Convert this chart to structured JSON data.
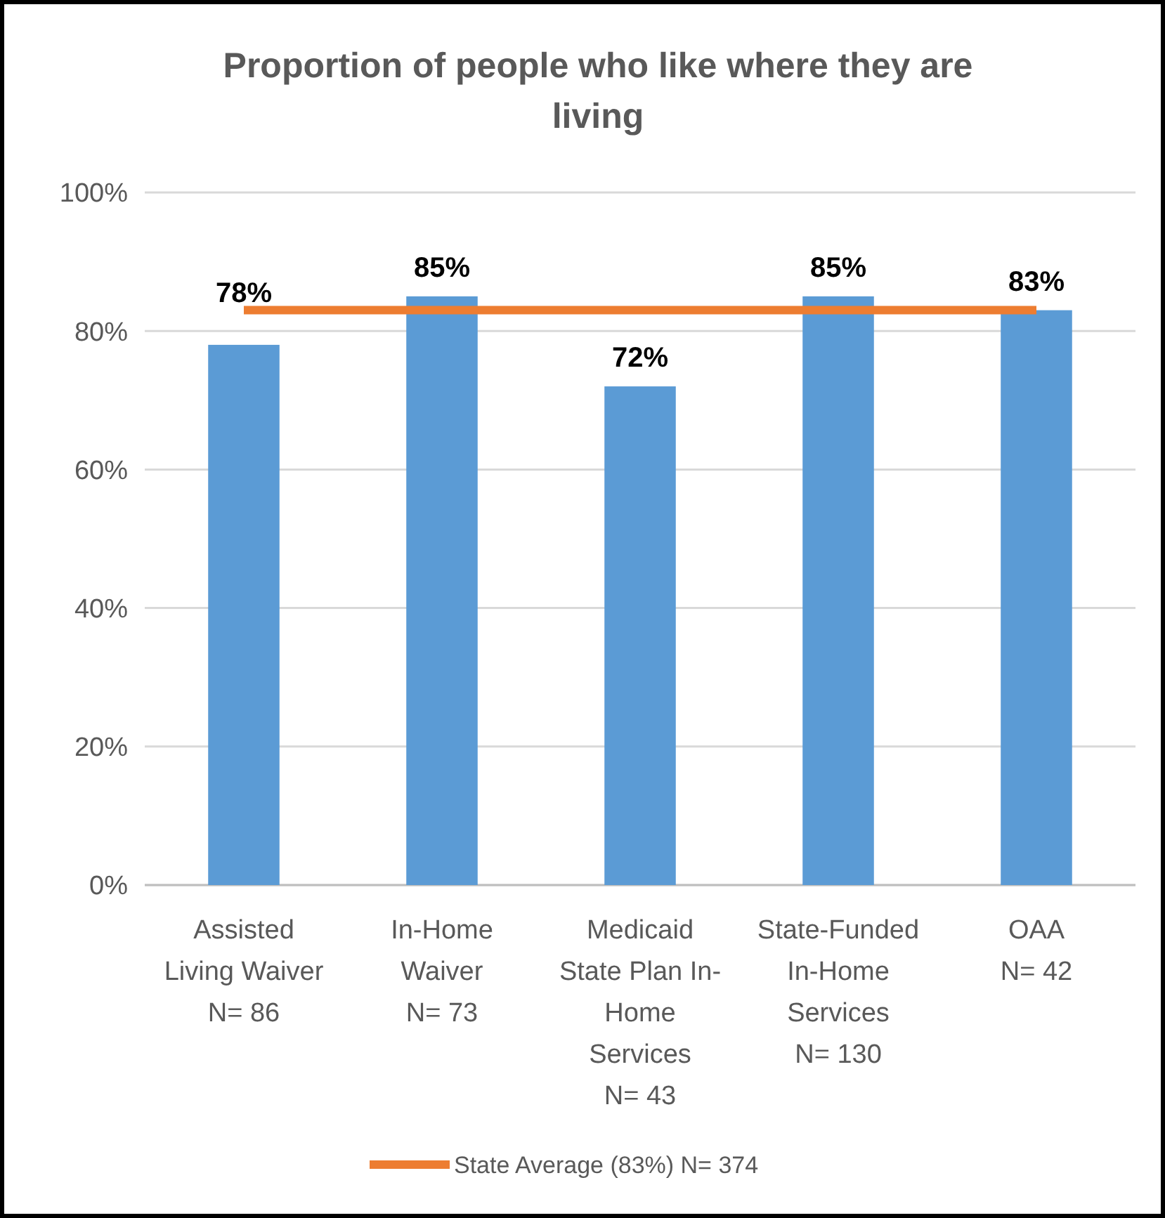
{
  "chart_data": {
    "type": "bar",
    "title": "Proportion of people who like where they are living",
    "categories": [
      "Assisted\nLiving Waiver\nN= 86",
      "In-Home\nWaiver\nN= 73",
      "Medicaid\nState Plan In-\nHome\nServices\nN= 43",
      "State-Funded\nIn-Home\nServices\nN= 130",
      "OAA\nN= 42"
    ],
    "series": [
      {
        "color": "#5b9bd5",
        "values": [
          78,
          85,
          72,
          85,
          83
        ],
        "value_labels": [
          "78%",
          "85%",
          "72%",
          "85%",
          "83%"
        ]
      },
      {
        "type": "line",
        "name": "State Average (83%) N= 374",
        "color": "#ed7d31",
        "values": [
          83,
          83,
          83,
          83,
          83
        ]
      }
    ],
    "ylim": [
      0,
      100
    ],
    "yticks": [
      {
        "value": 0,
        "label": "0%"
      },
      {
        "value": 20,
        "label": "20%"
      },
      {
        "value": 40,
        "label": "40%"
      },
      {
        "value": 60,
        "label": "60%"
      },
      {
        "value": 80,
        "label": "80%"
      },
      {
        "value": 100,
        "label": "100%"
      }
    ],
    "grid": "y",
    "legend": "bottom",
    "marker": "none"
  }
}
